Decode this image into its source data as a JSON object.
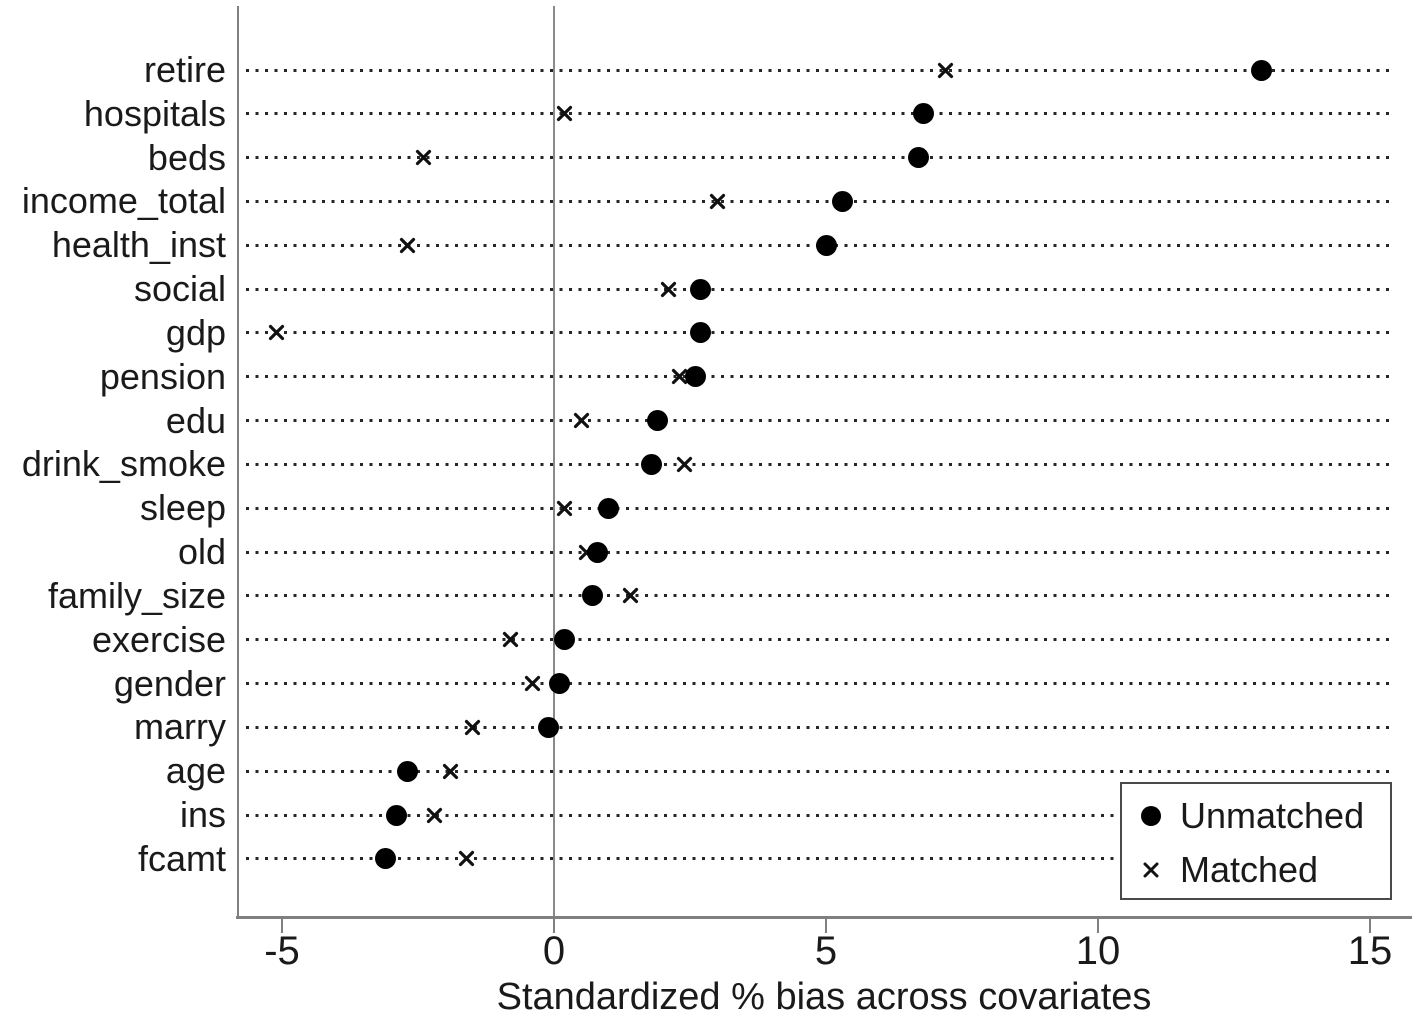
{
  "chart_data": {
    "type": "scatter",
    "title": "",
    "xlabel": "Standardized % bias across covariates",
    "x_ticks": [
      -5,
      0,
      5,
      10,
      15
    ],
    "xlim": [
      -5.8,
      15.8
    ],
    "grid": "dotted-horizontal-lines",
    "zero_reference_line": true,
    "legend_position": "bottom-right",
    "categories": [
      "retire",
      "hospitals",
      "beds",
      "income_total",
      "health_inst",
      "social",
      "gdp",
      "pension",
      "edu",
      "drink_smoke",
      "sleep",
      "old",
      "family_size",
      "exercise",
      "gender",
      "marry",
      "age",
      "ins",
      "fcamt"
    ],
    "series": [
      {
        "name": "Unmatched",
        "marker": "circle",
        "values": [
          13.0,
          6.8,
          6.7,
          5.3,
          5.0,
          2.7,
          2.7,
          2.6,
          1.9,
          1.8,
          1.0,
          0.8,
          0.7,
          0.2,
          0.1,
          -0.1,
          -2.7,
          -2.9,
          -3.1
        ]
      },
      {
        "name": "Matched",
        "marker": "x",
        "values": [
          7.2,
          0.2,
          -2.4,
          3.0,
          -2.7,
          2.1,
          -5.1,
          2.3,
          0.5,
          2.4,
          0.2,
          0.6,
          1.4,
          -0.8,
          -0.4,
          -1.5,
          -1.9,
          -2.2,
          -1.6
        ]
      }
    ]
  },
  "colors": {
    "marker": "#000000",
    "axis_line": "#808080",
    "dotted_line": "#262626",
    "text": "#1a1a1a",
    "background": "#ffffff"
  }
}
